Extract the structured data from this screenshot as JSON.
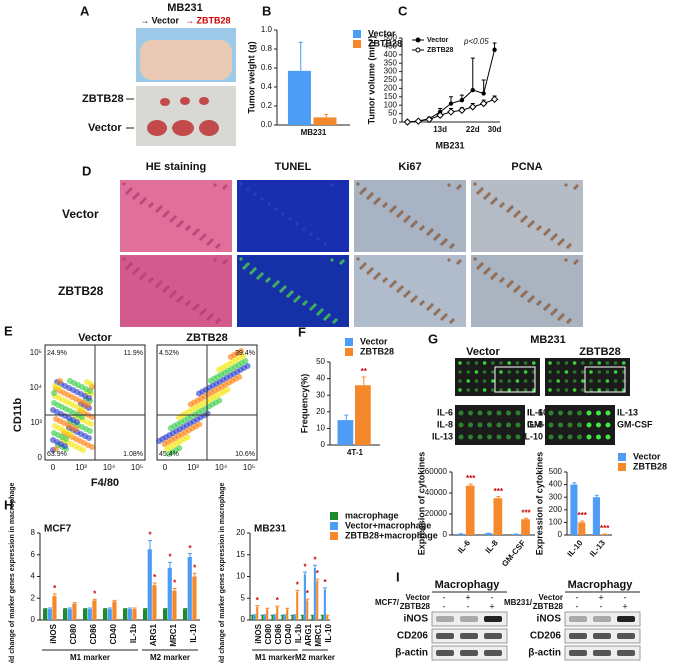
{
  "panel_labels": [
    "A",
    "B",
    "C",
    "D",
    "E",
    "F",
    "G",
    "H",
    "I"
  ],
  "panel_a": {
    "title": "MB231",
    "arrows": [
      "→ Vector",
      "→ ZBTB28"
    ],
    "rows": [
      "ZBTB28",
      "Vector"
    ]
  },
  "panel_d": {
    "columns": [
      "HE staining",
      "TUNEL",
      "Ki67",
      "PCNA"
    ],
    "rows": [
      "Vector",
      "ZBTB28"
    ]
  },
  "panel_e": {
    "plots": [
      {
        "title": "Vector",
        "quadrants": [
          "24.9%",
          "11.9%",
          "63.9%",
          "1.08%"
        ]
      },
      {
        "title": "ZBTB28",
        "quadrants": [
          "4.52%",
          "39.4%",
          "45.4%",
          "10.6%"
        ]
      }
    ],
    "ylabel": "CD11b",
    "xlabel": "F4/80",
    "yticks": [
      "0",
      "10³",
      "10⁴",
      "10⁵"
    ],
    "xticks": [
      "0",
      "10³",
      "10⁴",
      "10⁵"
    ]
  },
  "panel_g": {
    "title": "MB231",
    "labels": [
      "Vector",
      "ZBTB28"
    ],
    "left_spots": [
      "IL-6",
      "IL-8",
      "IL-13",
      "IL-10",
      "GM-CSF"
    ],
    "right_spots": [
      "IL-6",
      "IL-8",
      "IL-10",
      "IL-13",
      "GM-CSF"
    ]
  },
  "panel_i": {
    "header": "Macrophagy",
    "blots": [
      {
        "cell": "MCF7/",
        "rows": [
          "iNOS",
          "CD206",
          "β-actin"
        ]
      },
      {
        "cell": "MB231/",
        "rows": [
          "iNOS",
          "CD206",
          "β-actin"
        ]
      }
    ],
    "treatments": [
      "Vector",
      "ZBTB28"
    ],
    "signs": [
      [
        "-",
        "+",
        "-"
      ],
      [
        "-",
        "-",
        "+"
      ]
    ]
  },
  "chart_data": [
    {
      "type": "bar",
      "ylabel": "Tumor weight (g)",
      "categories": [
        "MB231"
      ],
      "legend": "top-right",
      "series": [
        {
          "name": "Vector",
          "color": "#4d9cf5",
          "values": [
            0.57
          ],
          "errors": [
            0.3
          ]
        },
        {
          "name": "ZBTB28",
          "color": "#f5882a",
          "values": [
            0.08
          ],
          "errors": [
            0.03
          ]
        }
      ],
      "ylim": [
        0,
        1.0
      ],
      "yticks": [
        {
          "value": 0,
          "label": "0.0"
        },
        0.2,
        0.4,
        0.6,
        0.8,
        {
          "value": 1,
          "label": "1.0"
        }
      ]
    },
    {
      "type": "line",
      "ylabel": "Tumor volume (mm³)",
      "xlabel": "MB231",
      "annotation": "p<0.05",
      "legend": "top-left",
      "categories": [
        null,
        null,
        null,
        "13d",
        null,
        null,
        "22d",
        null,
        "30d"
      ],
      "series": [
        {
          "name": "Vector",
          "color": "#000000",
          "marker": "circle",
          "values": [
            0,
            5,
            20,
            60,
            110,
            130,
            190,
            170,
            430
          ],
          "errors": [
            0,
            3,
            8,
            20,
            40,
            30,
            190,
            80,
            40
          ]
        },
        {
          "name": "ZBTB28",
          "color": "#000000",
          "marker": "diamond",
          "values": [
            0,
            5,
            15,
            40,
            60,
            70,
            90,
            110,
            135
          ],
          "errors": [
            0,
            3,
            5,
            10,
            20,
            15,
            20,
            20,
            20
          ]
        }
      ],
      "ylim": [
        0,
        500
      ],
      "yticks": [
        0,
        50,
        100,
        150,
        200,
        250,
        300,
        350,
        400,
        450,
        500
      ]
    },
    {
      "type": "bar",
      "ylabel": "Frequency(%)",
      "categories": [
        "4T-1"
      ],
      "legend": "top-right",
      "series": [
        {
          "name": "Vector",
          "color": "#4d9cf5",
          "values": [
            15
          ],
          "errors": [
            3
          ]
        },
        {
          "name": "ZBTB28",
          "color": "#f5882a",
          "values": [
            36
          ],
          "errors": [
            5
          ],
          "significance": [
            "**"
          ]
        }
      ],
      "ylim": [
        0,
        50
      ],
      "yticks": [
        0,
        10,
        20,
        30,
        40,
        50
      ]
    },
    {
      "type": "bar",
      "ylabel": "Expression of cytokines",
      "categories": [
        "IL-6",
        "IL-8",
        "GM-CSF"
      ],
      "series": [
        {
          "name": "Vector",
          "color": "#4d9cf5",
          "values": [
            1000,
            1500,
            800
          ],
          "errors": [
            200,
            200,
            200
          ]
        },
        {
          "name": "ZBTB28",
          "color": "#f5882a",
          "values": [
            47000,
            35000,
            15000
          ],
          "errors": [
            1500,
            1500,
            1000
          ],
          "significance": [
            "***",
            "***",
            "***"
          ]
        }
      ],
      "ylim": [
        0,
        60000
      ],
      "yticks": [
        0,
        20000,
        40000,
        60000
      ]
    },
    {
      "type": "bar",
      "ylabel": "Expression of cytokines",
      "categories": [
        "IL-10",
        "IL-13"
      ],
      "legend": "top-right",
      "series": [
        {
          "name": "Vector",
          "color": "#4d9cf5",
          "values": [
            400,
            300
          ],
          "errors": [
            15,
            15
          ]
        },
        {
          "name": "ZBTB28",
          "color": "#f5882a",
          "values": [
            100,
            5
          ],
          "errors": [
            10,
            2
          ],
          "significance": [
            "***",
            "***"
          ]
        }
      ],
      "ylim": [
        0,
        500
      ],
      "yticks": [
        0,
        100,
        200,
        300,
        400,
        500
      ]
    },
    {
      "type": "bar",
      "title": "MCF7",
      "ylabel": "Fold change of marker genes expression in macrophage",
      "groups": [
        "M1 marker",
        "M2 marker"
      ],
      "legend": "right",
      "categories": [
        "iNOS",
        "CD80",
        "CD86",
        "CD40",
        "IL-1b",
        "ARG1",
        "MRC1",
        "IL-10"
      ],
      "series": [
        {
          "name": "macrophage",
          "color": "#1e8a2e",
          "values": [
            1,
            1,
            1,
            1,
            1,
            1,
            1,
            1
          ],
          "errors": [
            0.05,
            0.05,
            0.05,
            0.05,
            0.05,
            0.05,
            0.05,
            0.05
          ]
        },
        {
          "name": "Vector+macrophage",
          "color": "#4d9cf5",
          "values": [
            1,
            1,
            1,
            1,
            1,
            6.5,
            4.8,
            5.8
          ],
          "errors": [
            0.1,
            0.1,
            0.1,
            0.1,
            0.1,
            0.8,
            0.5,
            0.3
          ],
          "significance": [
            null,
            null,
            null,
            null,
            null,
            "*",
            "*",
            "*"
          ]
        },
        {
          "name": "ZBTB28+macrophage",
          "color": "#f5882a",
          "values": [
            2.2,
            1.5,
            1.8,
            1.7,
            1,
            3.2,
            2.7,
            4
          ],
          "errors": [
            0.2,
            0.1,
            0.1,
            0.1,
            0.1,
            0.2,
            0.2,
            0.3
          ],
          "significance": [
            "*",
            null,
            "*",
            null,
            null,
            "*",
            "*",
            "*"
          ]
        }
      ],
      "ylim": [
        0,
        8
      ],
      "yticks": [
        0,
        2,
        4,
        6,
        8
      ]
    },
    {
      "type": "bar",
      "title": "MB231",
      "ylabel": "Fold change of marker genes expression in macrophage",
      "groups": [
        "M1 marker",
        "M2 marker"
      ],
      "categories": [
        "iNOS",
        "CD80",
        "CD86",
        "CD40",
        "IL-1b",
        "ARG1",
        "MRC1",
        "IL-10"
      ],
      "series": [
        {
          "name": "macrophage",
          "color": "#1e8a2e",
          "values": [
            1,
            1,
            1,
            1,
            1,
            1,
            1,
            1
          ],
          "errors": [
            0.1,
            0.1,
            0.1,
            0.1,
            0.1,
            0.1,
            0.1,
            0.1
          ]
        },
        {
          "name": "Vector+macrophage",
          "color": "#4d9cf5",
          "values": [
            1,
            1,
            1,
            1,
            1,
            10.5,
            12,
            7
          ],
          "errors": [
            0.2,
            0.2,
            0.2,
            0.2,
            0.2,
            0.5,
            0.6,
            0.4
          ],
          "significance": [
            null,
            null,
            null,
            null,
            null,
            "*",
            "*",
            "*"
          ]
        },
        {
          "name": "ZBTB28+macrophage",
          "color": "#f5882a",
          "values": [
            3,
            2.5,
            3,
            2.5,
            6.5,
            4.5,
            9,
            1
          ],
          "errors": [
            0.3,
            0.2,
            0.2,
            0.2,
            0.3,
            0.3,
            0.4,
            0.1
          ],
          "significance": [
            "*",
            null,
            "*",
            null,
            "*",
            "*",
            "*",
            null
          ]
        }
      ],
      "ylim": [
        0,
        20
      ],
      "yticks": [
        0,
        5,
        10,
        15,
        20
      ]
    }
  ]
}
